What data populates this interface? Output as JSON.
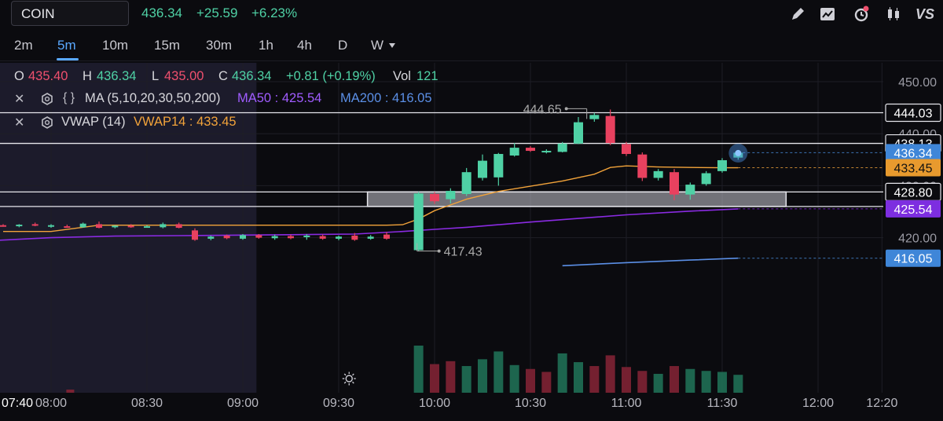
{
  "header": {
    "symbol": "COIN",
    "last": "436.34",
    "change": "+25.59",
    "change_pct": "+6.23%",
    "right_label": "VS"
  },
  "toolbar_icons": [
    "pencil-icon",
    "chart-trend-icon",
    "alert-clock-icon",
    "candles-icon",
    "vs-icon"
  ],
  "timeframes": [
    {
      "label": "2m",
      "active": false
    },
    {
      "label": "5m",
      "active": true
    },
    {
      "label": "10m",
      "active": false
    },
    {
      "label": "15m",
      "active": false
    },
    {
      "label": "30m",
      "active": false
    },
    {
      "label": "1h",
      "active": false
    },
    {
      "label": "4h",
      "active": false
    },
    {
      "label": "D",
      "active": false
    },
    {
      "label": "W",
      "active": false
    }
  ],
  "ohlc": {
    "o_label": "O",
    "o": "435.40",
    "h_label": "H",
    "h": "436.34",
    "l_label": "L",
    "l": "435.00",
    "c_label": "C",
    "c": "436.34",
    "chg": "+0.81 (+0.19%)",
    "vol_label": "Vol",
    "vol": "121"
  },
  "indicators": {
    "ma": {
      "name": "MA (5,10,20,30,50,200)",
      "ma50": "MA50 : 425.54",
      "ma200": "MA200 : 416.05"
    },
    "vwap": {
      "name": "VWAP (14)",
      "value": "VWAP14 : 433.45"
    }
  },
  "colors": {
    "up": "#4fd1a5",
    "down": "#e8415f",
    "ma50": "#8a2be2",
    "ma200": "#5b8fe6",
    "vwap": "#f2a33a",
    "premarket_bg": "#1c1b2b",
    "grid": "#1e1e26"
  },
  "chart_data": {
    "type": "candlestick",
    "y_range": [
      414.5,
      452.0
    ],
    "yticks": [
      "450.00",
      "440.00",
      "430.00",
      "420.00"
    ],
    "ytick_values": [
      450,
      440,
      430,
      420
    ],
    "xticks": [
      "07:40",
      "08:00",
      "08:30",
      "09:00",
      "09:30",
      "10:00",
      "10:30",
      "11:00",
      "11:30",
      "12:00",
      "12:20"
    ],
    "xtick_minutes": [
      460,
      480,
      510,
      540,
      570,
      600,
      630,
      660,
      690,
      720,
      740
    ],
    "premarket_end_minute": 575,
    "candles": [
      {
        "t": 465,
        "o": 422.4,
        "h": 422.6,
        "l": 422.1,
        "c": 422.3
      },
      {
        "t": 470,
        "o": 422.3,
        "h": 422.6,
        "l": 422.0,
        "c": 422.5
      },
      {
        "t": 475,
        "o": 422.6,
        "h": 422.9,
        "l": 422.2,
        "c": 422.3
      },
      {
        "t": 480,
        "o": 422.2,
        "h": 422.6,
        "l": 421.9,
        "c": 422.4
      },
      {
        "t": 485,
        "o": 422.2,
        "h": 422.5,
        "l": 421.9,
        "c": 422.0
      },
      {
        "t": 490,
        "o": 422.0,
        "h": 422.9,
        "l": 421.9,
        "c": 422.7
      },
      {
        "t": 495,
        "o": 422.6,
        "h": 423.1,
        "l": 421.8,
        "c": 421.9
      },
      {
        "t": 500,
        "o": 422.1,
        "h": 422.4,
        "l": 421.8,
        "c": 422.3
      },
      {
        "t": 505,
        "o": 422.3,
        "h": 422.6,
        "l": 421.9,
        "c": 422.0
      },
      {
        "t": 510,
        "o": 422.1,
        "h": 422.4,
        "l": 421.9,
        "c": 422.2
      },
      {
        "t": 515,
        "o": 422.0,
        "h": 422.9,
        "l": 421.8,
        "c": 422.6
      },
      {
        "t": 520,
        "o": 422.6,
        "h": 422.9,
        "l": 421.8,
        "c": 421.9
      },
      {
        "t": 525,
        "o": 421.4,
        "h": 421.8,
        "l": 419.4,
        "c": 419.6
      },
      {
        "t": 530,
        "o": 419.8,
        "h": 420.4,
        "l": 419.5,
        "c": 420.2
      },
      {
        "t": 535,
        "o": 420.4,
        "h": 420.6,
        "l": 419.7,
        "c": 419.9
      },
      {
        "t": 540,
        "o": 419.8,
        "h": 420.7,
        "l": 419.6,
        "c": 420.5
      },
      {
        "t": 545,
        "o": 420.5,
        "h": 420.7,
        "l": 419.8,
        "c": 420.0
      },
      {
        "t": 550,
        "o": 419.9,
        "h": 420.6,
        "l": 419.6,
        "c": 420.3
      },
      {
        "t": 555,
        "o": 420.3,
        "h": 420.6,
        "l": 419.7,
        "c": 419.9
      },
      {
        "t": 560,
        "o": 420.1,
        "h": 420.7,
        "l": 419.6,
        "c": 420.4
      },
      {
        "t": 565,
        "o": 420.3,
        "h": 420.6,
        "l": 419.6,
        "c": 419.8
      },
      {
        "t": 570,
        "o": 419.8,
        "h": 420.4,
        "l": 419.5,
        "c": 420.2
      },
      {
        "t": 575,
        "o": 420.4,
        "h": 420.9,
        "l": 419.4,
        "c": 419.6
      },
      {
        "t": 580,
        "o": 419.8,
        "h": 420.5,
        "l": 419.6,
        "c": 420.2
      },
      {
        "t": 585,
        "o": 420.6,
        "h": 421.1,
        "l": 419.6,
        "c": 419.8
      },
      {
        "t": 595,
        "o": 417.6,
        "h": 428.8,
        "l": 417.4,
        "c": 428.5
      },
      {
        "t": 600,
        "o": 428.4,
        "h": 428.8,
        "l": 426.5,
        "c": 427.0
      },
      {
        "t": 605,
        "o": 427.4,
        "h": 429.5,
        "l": 426.6,
        "c": 429.0
      },
      {
        "t": 610,
        "o": 428.4,
        "h": 433.4,
        "l": 428.0,
        "c": 432.6
      },
      {
        "t": 615,
        "o": 431.5,
        "h": 436.0,
        "l": 431.0,
        "c": 434.8
      },
      {
        "t": 620,
        "o": 431.6,
        "h": 436.3,
        "l": 430.0,
        "c": 436.1
      },
      {
        "t": 625,
        "o": 435.8,
        "h": 438.2,
        "l": 435.6,
        "c": 437.3
      },
      {
        "t": 630,
        "o": 437.3,
        "h": 437.6,
        "l": 436.5,
        "c": 436.7
      },
      {
        "t": 635,
        "o": 436.4,
        "h": 437.0,
        "l": 436.2,
        "c": 436.7
      },
      {
        "t": 640,
        "o": 436.5,
        "h": 438.4,
        "l": 436.4,
        "c": 438.1
      },
      {
        "t": 645,
        "o": 438.1,
        "h": 443.2,
        "l": 438.0,
        "c": 442.2
      },
      {
        "t": 650,
        "o": 442.8,
        "h": 444.0,
        "l": 442.3,
        "c": 443.6
      },
      {
        "t": 655,
        "o": 443.4,
        "h": 444.65,
        "l": 437.8,
        "c": 438.2
      },
      {
        "t": 660,
        "o": 438.0,
        "h": 438.4,
        "l": 435.7,
        "c": 436.1
      },
      {
        "t": 665,
        "o": 436.0,
        "h": 436.4,
        "l": 430.9,
        "c": 431.5
      },
      {
        "t": 670,
        "o": 431.5,
        "h": 433.2,
        "l": 431.0,
        "c": 432.8
      },
      {
        "t": 675,
        "o": 432.6,
        "h": 433.2,
        "l": 427.2,
        "c": 428.3
      },
      {
        "t": 680,
        "o": 428.3,
        "h": 430.6,
        "l": 427.3,
        "c": 430.2
      },
      {
        "t": 685,
        "o": 430.3,
        "h": 432.8,
        "l": 430.0,
        "c": 432.4
      },
      {
        "t": 690,
        "o": 432.8,
        "h": 435.3,
        "l": 432.5,
        "c": 434.9
      },
      {
        "t": 695,
        "o": 435.4,
        "h": 436.34,
        "l": 435.0,
        "c": 436.34
      }
    ],
    "volume": [
      {
        "t": 595,
        "v": 100,
        "up": true
      },
      {
        "t": 600,
        "v": 62,
        "up": false
      },
      {
        "t": 605,
        "v": 68,
        "up": false
      },
      {
        "t": 610,
        "v": 58,
        "up": true
      },
      {
        "t": 615,
        "v": 72,
        "up": true
      },
      {
        "t": 620,
        "v": 88,
        "up": true
      },
      {
        "t": 625,
        "v": 60,
        "up": true
      },
      {
        "t": 630,
        "v": 52,
        "up": false
      },
      {
        "t": 635,
        "v": 46,
        "up": false
      },
      {
        "t": 640,
        "v": 84,
        "up": true
      },
      {
        "t": 645,
        "v": 66,
        "up": true
      },
      {
        "t": 650,
        "v": 58,
        "up": false
      },
      {
        "t": 655,
        "v": 80,
        "up": false
      },
      {
        "t": 660,
        "v": 56,
        "up": false
      },
      {
        "t": 665,
        "v": 48,
        "up": false
      },
      {
        "t": 670,
        "v": 42,
        "up": true
      },
      {
        "t": 675,
        "v": 58,
        "up": false
      },
      {
        "t": 680,
        "v": 52,
        "up": true
      },
      {
        "t": 685,
        "v": 48,
        "up": true
      },
      {
        "t": 690,
        "v": 46,
        "up": true
      },
      {
        "t": 695,
        "v": 40,
        "up": true
      }
    ],
    "premarket_volume_tick": {
      "t": 486,
      "v": 6
    },
    "vwap": [
      [
        465,
        421.2
      ],
      [
        480,
        421.2
      ],
      [
        495,
        422.4
      ],
      [
        520,
        422.4
      ],
      [
        560,
        422.4
      ],
      [
        585,
        422.4
      ],
      [
        590,
        422.5
      ],
      [
        595,
        423.6
      ],
      [
        600,
        425.2
      ],
      [
        605,
        426.3
      ],
      [
        610,
        427.4
      ],
      [
        620,
        428.9
      ],
      [
        630,
        429.9
      ],
      [
        640,
        430.9
      ],
      [
        650,
        432.2
      ],
      [
        655,
        433.5
      ],
      [
        660,
        433.8
      ],
      [
        670,
        433.6
      ],
      [
        680,
        433.5
      ],
      [
        690,
        433.45
      ],
      [
        695,
        433.45
      ]
    ],
    "ma50": [
      [
        460,
        419.4
      ],
      [
        480,
        420.0
      ],
      [
        500,
        420.3
      ],
      [
        520,
        420.4
      ],
      [
        540,
        420.5
      ],
      [
        560,
        420.6
      ],
      [
        575,
        420.7
      ],
      [
        590,
        421.2
      ],
      [
        600,
        421.6
      ],
      [
        610,
        422.0
      ],
      [
        620,
        422.5
      ],
      [
        630,
        423.0
      ],
      [
        645,
        423.7
      ],
      [
        660,
        424.4
      ],
      [
        680,
        425.1
      ],
      [
        695,
        425.54
      ]
    ],
    "ma200": [
      [
        640,
        414.6
      ],
      [
        660,
        415.2
      ],
      [
        680,
        415.7
      ],
      [
        695,
        416.05
      ]
    ],
    "hlines": [
      {
        "value": 444.03,
        "label": "444.03",
        "left_minute": 460
      },
      {
        "value": 438.13,
        "label": "438.13",
        "left_minute": 460
      },
      {
        "value": 428.8,
        "label": "428.80",
        "left_minute": 460
      },
      {
        "value": 426.0,
        "label": "",
        "left_minute": 460
      }
    ],
    "zone": {
      "from_minute": 579,
      "to_minute": 710,
      "top": 428.8,
      "bottom": 426.0
    },
    "price_tags": [
      {
        "value": 436.34,
        "label": "436.34",
        "type": "last"
      },
      {
        "value": 433.45,
        "label": "433.45",
        "type": "vwap"
      },
      {
        "value": 425.54,
        "label": "425.54",
        "type": "ma50"
      },
      {
        "value": 416.05,
        "label": "416.05",
        "type": "ma200"
      }
    ],
    "high_marker": {
      "t": 655,
      "value": 444.65,
      "label": "444.65"
    },
    "low_marker": {
      "t": 595,
      "value": 417.43,
      "label": "417.43"
    }
  }
}
